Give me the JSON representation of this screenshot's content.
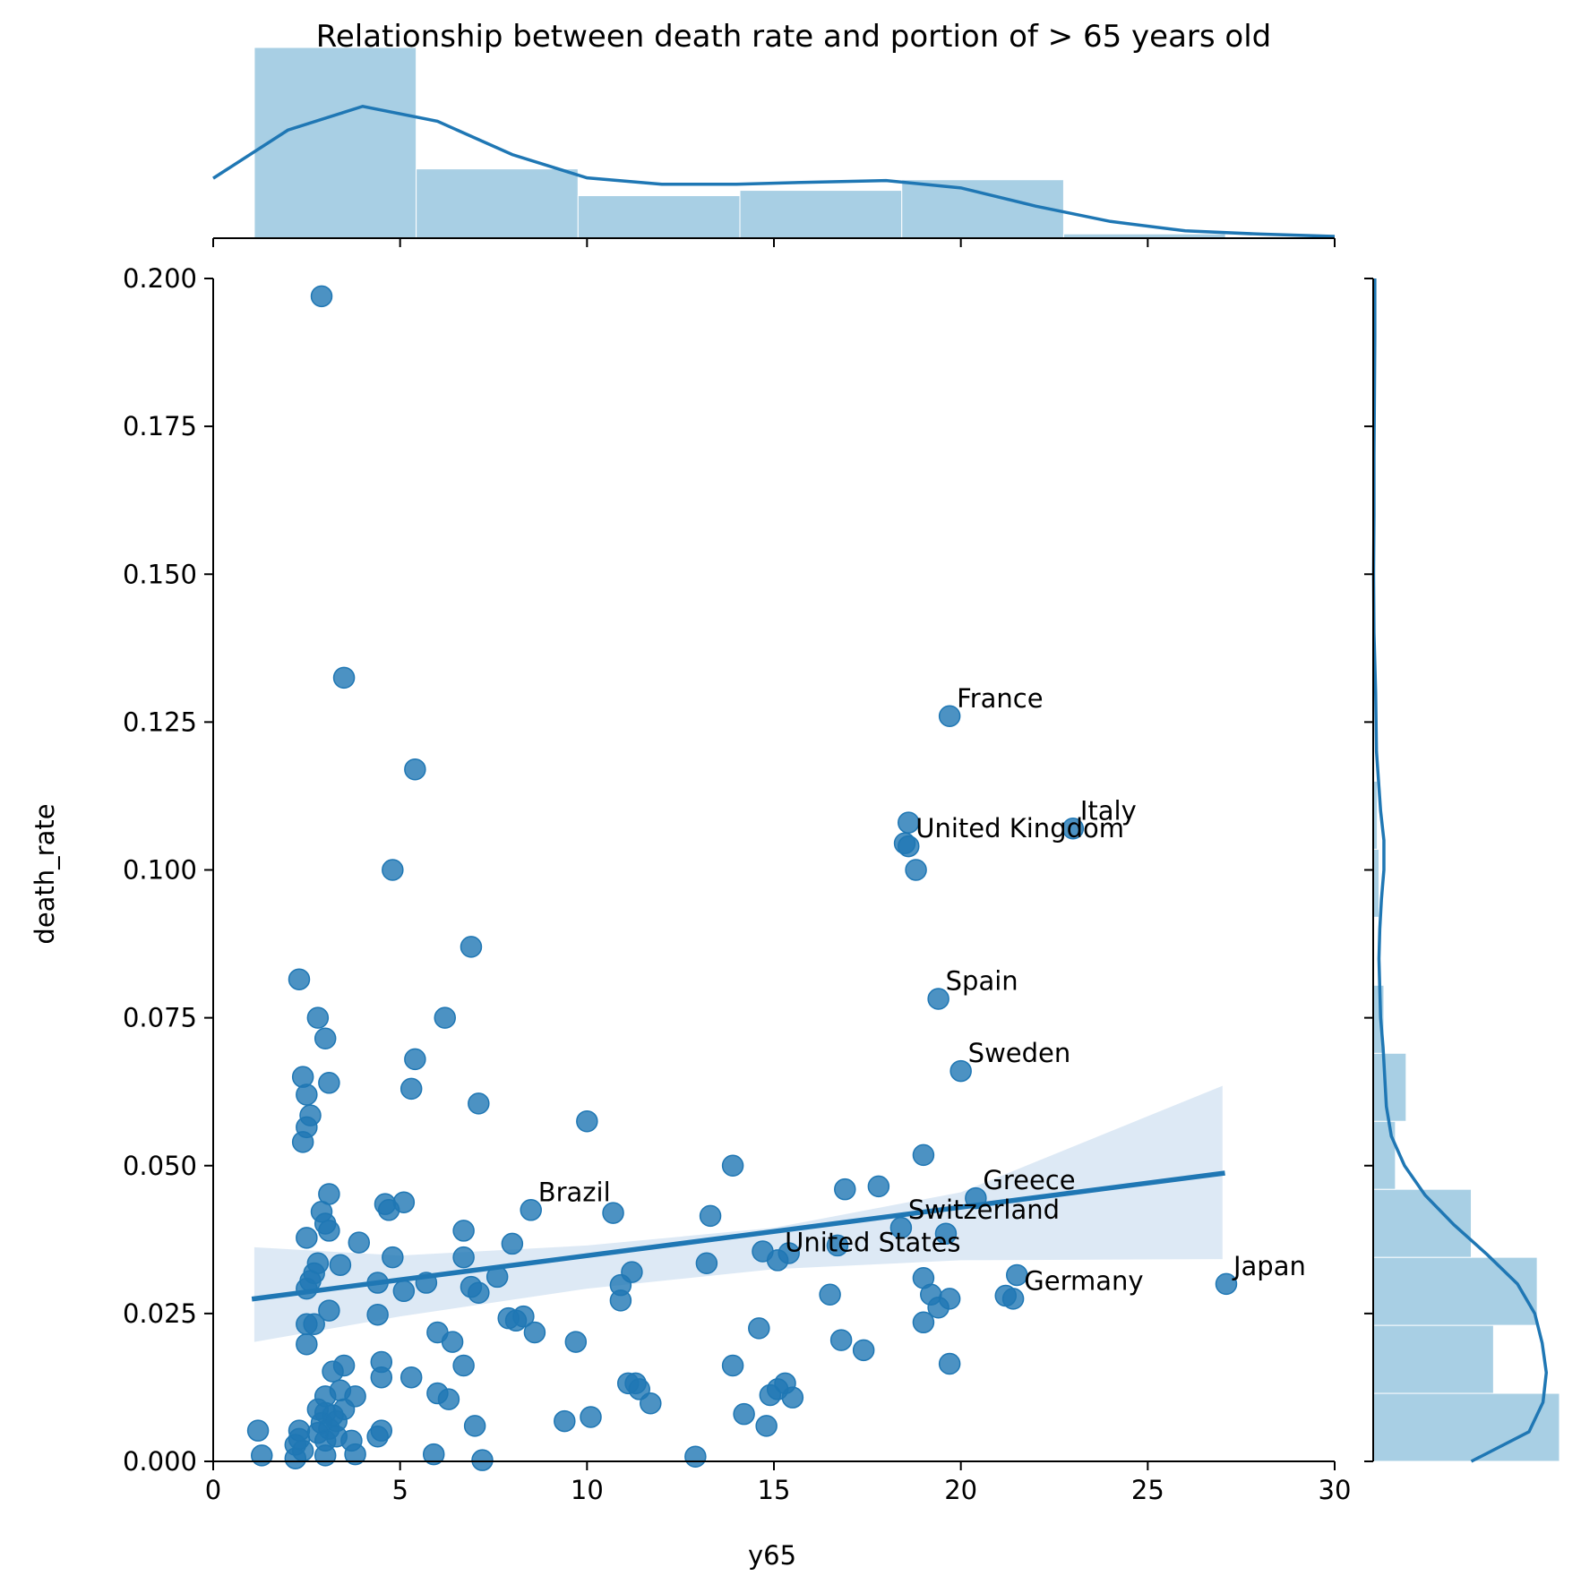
{
  "chart_data": {
    "type": "scatter",
    "title": "Relationship between death rate and portion of > 65 years old",
    "xlabel": "y65",
    "ylabel": "death_rate",
    "xlim": [
      0,
      30
    ],
    "ylim": [
      0,
      0.2
    ],
    "x_ticks": [
      "0",
      "5",
      "10",
      "15",
      "20",
      "25",
      "30"
    ],
    "y_ticks": [
      "0.000",
      "0.025",
      "0.050",
      "0.075",
      "0.100",
      "0.125",
      "0.150",
      "0.175",
      "0.200"
    ],
    "grid": false,
    "colors": {
      "points": "#1f77b4",
      "line": "#1f77b4",
      "ci_band": "#c6dbef",
      "hist": "#9ecae1"
    },
    "points": [
      [
        2.9,
        0.197
      ],
      [
        3.5,
        0.1325
      ],
      [
        5.4,
        0.117
      ],
      [
        4.8,
        0.1
      ],
      [
        6.9,
        0.087
      ],
      [
        2.3,
        0.0815
      ],
      [
        2.8,
        0.075
      ],
      [
        6.2,
        0.075
      ],
      [
        3.0,
        0.0715
      ],
      [
        5.4,
        0.068
      ],
      [
        2.4,
        0.065
      ],
      [
        3.1,
        0.064
      ],
      [
        5.3,
        0.063
      ],
      [
        2.5,
        0.062
      ],
      [
        7.1,
        0.0605
      ],
      [
        2.6,
        0.0585
      ],
      [
        2.5,
        0.0565
      ],
      [
        10.0,
        0.0575
      ],
      [
        2.4,
        0.054
      ],
      [
        19.7,
        0.126
      ],
      [
        18.6,
        0.108
      ],
      [
        18.5,
        0.1045
      ],
      [
        18.6,
        0.104
      ],
      [
        18.8,
        0.1
      ],
      [
        23.0,
        0.107
      ],
      [
        19.4,
        0.0782
      ],
      [
        20.0,
        0.066
      ],
      [
        19.0,
        0.0518
      ],
      [
        13.9,
        0.05
      ],
      [
        20.4,
        0.0445
      ],
      [
        16.9,
        0.046
      ],
      [
        17.8,
        0.0465
      ],
      [
        18.4,
        0.0395
      ],
      [
        19.6,
        0.0385
      ],
      [
        16.7,
        0.0365
      ],
      [
        21.5,
        0.0315
      ],
      [
        21.2,
        0.028
      ],
      [
        21.4,
        0.0275
      ],
      [
        27.1,
        0.03
      ],
      [
        3.1,
        0.0452
      ],
      [
        4.6,
        0.0435
      ],
      [
        5.1,
        0.0438
      ],
      [
        4.7,
        0.0425
      ],
      [
        2.9,
        0.0422
      ],
      [
        3.0,
        0.0402
      ],
      [
        3.1,
        0.039
      ],
      [
        2.5,
        0.0378
      ],
      [
        3.9,
        0.037
      ],
      [
        6.7,
        0.039
      ],
      [
        8.0,
        0.0368
      ],
      [
        8.5,
        0.0425
      ],
      [
        10.7,
        0.042
      ],
      [
        13.3,
        0.0415
      ],
      [
        2.8,
        0.0335
      ],
      [
        3.4,
        0.0332
      ],
      [
        4.8,
        0.0345
      ],
      [
        6.7,
        0.0345
      ],
      [
        2.7,
        0.0318
      ],
      [
        2.6,
        0.0305
      ],
      [
        4.4,
        0.0302
      ],
      [
        5.7,
        0.0302
      ],
      [
        7.6,
        0.0312
      ],
      [
        2.5,
        0.0292
      ],
      [
        5.1,
        0.0288
      ],
      [
        6.9,
        0.0295
      ],
      [
        7.1,
        0.0285
      ],
      [
        10.9,
        0.0298
      ],
      [
        11.2,
        0.032
      ],
      [
        13.2,
        0.0335
      ],
      [
        14.7,
        0.0355
      ],
      [
        15.1,
        0.034
      ],
      [
        15.4,
        0.0352
      ],
      [
        10.9,
        0.0272
      ],
      [
        16.5,
        0.0282
      ],
      [
        19.0,
        0.031
      ],
      [
        19.2,
        0.0282
      ],
      [
        19.7,
        0.0275
      ],
      [
        19.4,
        0.026
      ],
      [
        19.0,
        0.0235
      ],
      [
        3.1,
        0.0255
      ],
      [
        4.4,
        0.0248
      ],
      [
        2.5,
        0.0232
      ],
      [
        2.7,
        0.0232
      ],
      [
        7.9,
        0.0242
      ],
      [
        8.3,
        0.0245
      ],
      [
        8.1,
        0.0238
      ],
      [
        8.6,
        0.0218
      ],
      [
        6.0,
        0.0218
      ],
      [
        6.4,
        0.0202
      ],
      [
        9.7,
        0.0202
      ],
      [
        14.6,
        0.0225
      ],
      [
        16.8,
        0.0205
      ],
      [
        17.4,
        0.0188
      ],
      [
        2.5,
        0.0198
      ],
      [
        19.7,
        0.0165
      ],
      [
        3.5,
        0.0162
      ],
      [
        3.2,
        0.0152
      ],
      [
        4.5,
        0.0168
      ],
      [
        4.5,
        0.0142
      ],
      [
        5.3,
        0.0142
      ],
      [
        6.7,
        0.0162
      ],
      [
        13.9,
        0.0162
      ],
      [
        11.1,
        0.0132
      ],
      [
        11.3,
        0.0132
      ],
      [
        11.4,
        0.0122
      ],
      [
        11.7,
        0.0098
      ],
      [
        15.3,
        0.0132
      ],
      [
        15.1,
        0.0122
      ],
      [
        14.9,
        0.0112
      ],
      [
        15.5,
        0.0108
      ],
      [
        3.0,
        0.011
      ],
      [
        3.4,
        0.012
      ],
      [
        3.8,
        0.011
      ],
      [
        6.0,
        0.0115
      ],
      [
        6.3,
        0.0105
      ],
      [
        2.8,
        0.0088
      ],
      [
        3.0,
        0.0082
      ],
      [
        3.2,
        0.0078
      ],
      [
        3.5,
        0.0088
      ],
      [
        2.9,
        0.0065
      ],
      [
        3.3,
        0.0068
      ],
      [
        3.1,
        0.0055
      ],
      [
        2.8,
        0.0048
      ],
      [
        3.0,
        0.0035
      ],
      [
        3.3,
        0.0042
      ],
      [
        1.2,
        0.0052
      ],
      [
        2.3,
        0.0052
      ],
      [
        2.3,
        0.0038
      ],
      [
        2.2,
        0.0028
      ],
      [
        2.4,
        0.0018
      ],
      [
        1.3,
        0.001
      ],
      [
        2.2,
        0.0005
      ],
      [
        3.0,
        0.001
      ],
      [
        3.8,
        0.0012
      ],
      [
        3.7,
        0.0035
      ],
      [
        4.5,
        0.0052
      ],
      [
        4.4,
        0.0042
      ],
      [
        5.9,
        0.0012
      ],
      [
        7.0,
        0.006
      ],
      [
        7.2,
        0.0002
      ],
      [
        9.4,
        0.0068
      ],
      [
        10.1,
        0.0075
      ],
      [
        14.2,
        0.008
      ],
      [
        14.8,
        0.006
      ],
      [
        12.9,
        0.0008
      ]
    ],
    "annotations": [
      {
        "text": "France",
        "x": 19.7,
        "y": 0.126
      },
      {
        "text": "Italy",
        "x": 23.0,
        "y": 0.107
      },
      {
        "text": "United Kingdom",
        "x": 18.6,
        "y": 0.104
      },
      {
        "text": "Spain",
        "x": 19.4,
        "y": 0.0782
      },
      {
        "text": "Sweden",
        "x": 20.0,
        "y": 0.066
      },
      {
        "text": "Greece",
        "x": 20.4,
        "y": 0.0445
      },
      {
        "text": "Switzerland",
        "x": 18.4,
        "y": 0.0395
      },
      {
        "text": "United States",
        "x": 15.1,
        "y": 0.034
      },
      {
        "text": "Germany",
        "x": 21.5,
        "y": 0.0275
      },
      {
        "text": "Japan",
        "x": 27.1,
        "y": 0.03
      },
      {
        "text": "Brazil",
        "x": 8.5,
        "y": 0.0425
      }
    ],
    "regression": {
      "x": [
        1.1,
        27.0
      ],
      "y": [
        0.0275,
        0.0487
      ],
      "ci_x": [
        1.1,
        5,
        10,
        15,
        20,
        27.0
      ],
      "ci_lower": [
        0.0202,
        0.0245,
        0.0292,
        0.0325,
        0.034,
        0.0342
      ],
      "ci_upper": [
        0.0362,
        0.0348,
        0.0365,
        0.0395,
        0.0455,
        0.0635
      ]
    },
    "x_marginal": {
      "bin_edges": [
        1.1,
        5.43,
        9.76,
        14.09,
        18.42,
        22.75,
        27.08
      ],
      "density": [
        0.0933,
        0.0339,
        0.0208,
        0.0234,
        0.0286,
        0.0021
      ],
      "kde_x": [
        0,
        2,
        4,
        6,
        8,
        10,
        12,
        14,
        16,
        18,
        20,
        22,
        24,
        26,
        28,
        30
      ],
      "kde_y": [
        0.0293,
        0.0529,
        0.0645,
        0.0572,
        0.0409,
        0.0295,
        0.0264,
        0.0264,
        0.0274,
        0.0282,
        0.0246,
        0.0157,
        0.0082,
        0.0036,
        0.002,
        0.0009
      ]
    },
    "y_marginal": {
      "bin_edges": [
        0.0,
        0.0115,
        0.023,
        0.0345,
        0.046,
        0.0575,
        0.069,
        0.0805,
        0.092,
        0.1035,
        0.115,
        0.1265,
        0.138,
        0.1495,
        0.161,
        0.1725,
        0.1845,
        0.1955,
        0.2
      ],
      "density": [
        22.6,
        14.6,
        19.9,
        11.9,
        2.7,
        4.0,
        1.3,
        0.0,
        0.7,
        0.5,
        0.1,
        0.0,
        0.0,
        0.0,
        0.0,
        0.0,
        0.0,
        0.1
      ],
      "kde_y": [
        0.0,
        0.005,
        0.01,
        0.015,
        0.02,
        0.025,
        0.03,
        0.035,
        0.04,
        0.045,
        0.05,
        0.055,
        0.06,
        0.065,
        0.07,
        0.075,
        0.08,
        0.085,
        0.09,
        0.095,
        0.1,
        0.105,
        0.11,
        0.12,
        0.13,
        0.14,
        0.15,
        0.16,
        0.17,
        0.18,
        0.19,
        0.2
      ],
      "kde_x": [
        11.9,
        18.9,
        20.6,
        21.0,
        20.5,
        19.6,
        17.5,
        13.8,
        9.8,
        6.3,
        3.8,
        2.2,
        1.6,
        1.4,
        1.2,
        0.9,
        0.8,
        0.7,
        0.8,
        1.0,
        1.3,
        1.3,
        0.9,
        0.4,
        0.3,
        0.1,
        0.05,
        0.1,
        0.1,
        0.15,
        0.2,
        0.2
      ]
    }
  }
}
